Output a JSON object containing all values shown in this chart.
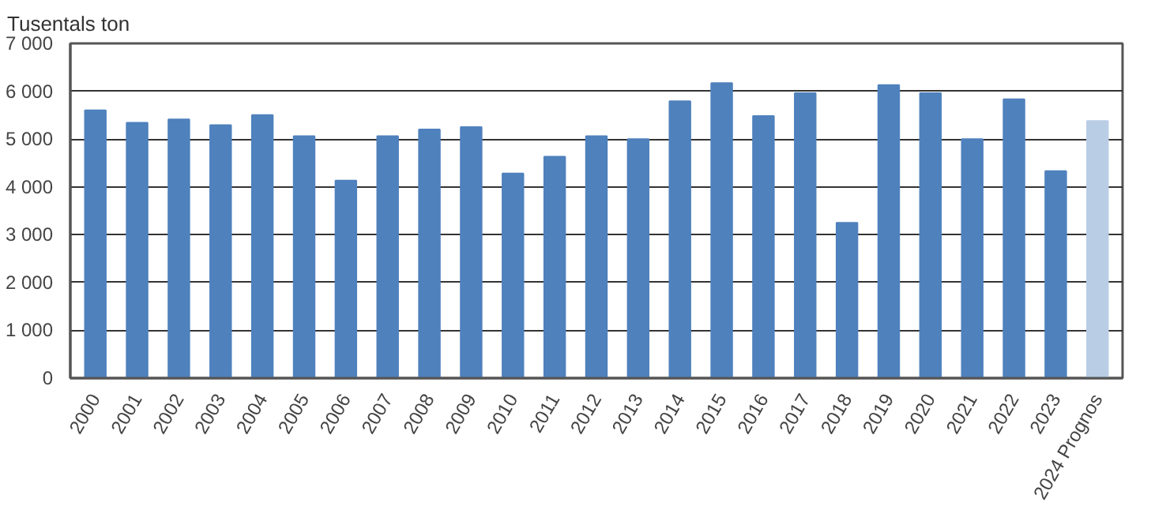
{
  "chart_data": {
    "type": "bar",
    "ylabel": "Tusentals ton",
    "categories": [
      "2000",
      "2001",
      "2002",
      "2003",
      "2004",
      "2005",
      "2006",
      "2007",
      "2008",
      "2009",
      "2010",
      "2011",
      "2012",
      "2013",
      "2014",
      "2015",
      "2016",
      "2017",
      "2018",
      "2019",
      "2020",
      "2021",
      "2022",
      "2023",
      "2024 Prognos"
    ],
    "values": [
      5600,
      5340,
      5410,
      5290,
      5500,
      5060,
      4130,
      5060,
      5200,
      5250,
      4280,
      4630,
      5060,
      5000,
      5790,
      6170,
      5480,
      5960,
      3250,
      6130,
      5960,
      5000,
      5830,
      4330,
      5380
    ],
    "colors": [
      "#4f81bd",
      "#4f81bd",
      "#4f81bd",
      "#4f81bd",
      "#4f81bd",
      "#4f81bd",
      "#4f81bd",
      "#4f81bd",
      "#4f81bd",
      "#4f81bd",
      "#4f81bd",
      "#4f81bd",
      "#4f81bd",
      "#4f81bd",
      "#4f81bd",
      "#4f81bd",
      "#4f81bd",
      "#4f81bd",
      "#4f81bd",
      "#4f81bd",
      "#4f81bd",
      "#4f81bd",
      "#4f81bd",
      "#4f81bd",
      "#b9cde5"
    ],
    "ylim": [
      0,
      7000
    ],
    "yticks": [
      {
        "value": 0,
        "label": "0"
      },
      {
        "value": 1000,
        "label": "1 000"
      },
      {
        "value": 2000,
        "label": "2 000"
      },
      {
        "value": 3000,
        "label": "3 000"
      },
      {
        "value": 4000,
        "label": "4 000"
      },
      {
        "value": 5000,
        "label": "5 000"
      },
      {
        "value": 6000,
        "label": "6 000"
      },
      {
        "value": 7000,
        "label": "7 000"
      }
    ],
    "grid": "y"
  }
}
